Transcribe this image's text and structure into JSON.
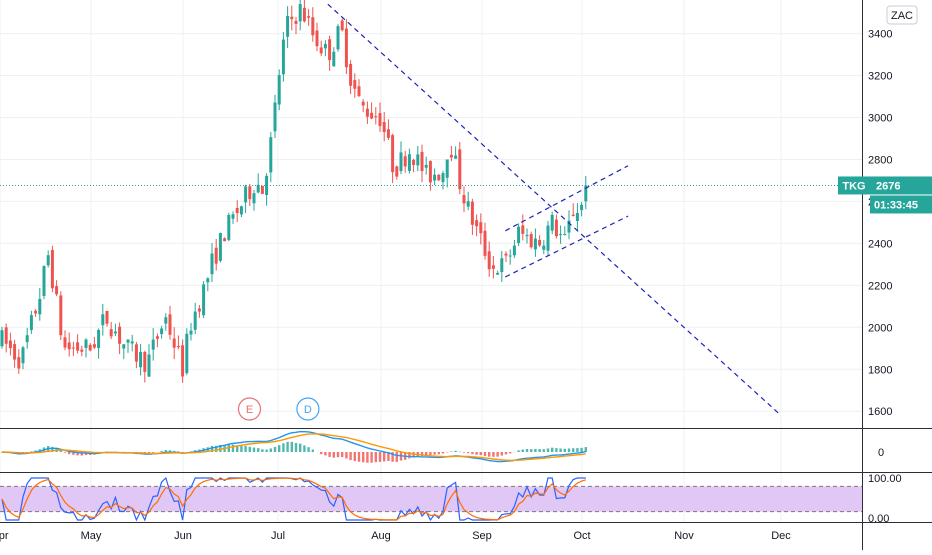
{
  "chart_data": {
    "type": "candlestick",
    "symbol": "TKG",
    "last_price": "2676",
    "countdown": "01:33:45",
    "scale_button": "ZAC",
    "y_axis": {
      "ticks": [
        "3400",
        "3200",
        "3000",
        "2800",
        "2600",
        "2400",
        "2200",
        "2000",
        "1800",
        "1600"
      ],
      "ylim": [
        1520,
        3560
      ]
    },
    "x_axis": {
      "ticks": [
        "Apr",
        "May",
        "Jun",
        "Jul",
        "Aug",
        "Sep",
        "Oct",
        "Nov",
        "Dec"
      ]
    },
    "price_waypoints": [
      [
        "Apr 1",
        1950
      ],
      [
        "Apr 8",
        1840
      ],
      [
        "Apr 14",
        2150
      ],
      [
        "Apr 17",
        2350
      ],
      [
        "Apr 22",
        1900
      ],
      [
        "May 1",
        1900
      ],
      [
        "May 6",
        2050
      ],
      [
        "May 13",
        1900
      ],
      [
        "May 20",
        1830
      ],
      [
        "May 26",
        2050
      ],
      [
        "Jun 1",
        1800
      ],
      [
        "Jun 3",
        2000
      ],
      [
        "Jun 8",
        2200
      ],
      [
        "Jun 10",
        2300
      ],
      [
        "Jun 14",
        2450
      ],
      [
        "Jun 20",
        2600
      ],
      [
        "Jun 24",
        2700
      ],
      [
        "Jun 26",
        2650
      ],
      [
        "Jun 29",
        2900
      ],
      [
        "Jul 2",
        3300
      ],
      [
        "Jul 4",
        3450
      ],
      [
        "Jul 8",
        3520
      ],
      [
        "Jul 12",
        3380
      ],
      [
        "Jul 16",
        3300
      ],
      [
        "Jul 20",
        3420
      ],
      [
        "Jul 23",
        3180
      ],
      [
        "Jul 26",
        3050
      ],
      [
        "Aug 1",
        3000
      ],
      [
        "Aug 5",
        2750
      ],
      [
        "Aug 10",
        2850
      ],
      [
        "Aug 15",
        2720
      ],
      [
        "Aug 20",
        2750
      ],
      [
        "Aug 22",
        2900
      ],
      [
        "Aug 25",
        2700
      ],
      [
        "Aug 28",
        2550
      ],
      [
        "Sep 1",
        2400
      ],
      [
        "Sep 4",
        2280
      ],
      [
        "Sep 8",
        2300
      ],
      [
        "Sep 12",
        2450
      ],
      [
        "Sep 18",
        2400
      ],
      [
        "Sep 22",
        2500
      ],
      [
        "Sep 26",
        2400
      ],
      [
        "Sep 28",
        2550
      ],
      [
        "Oct 1",
        2580
      ],
      [
        "Oct 3",
        2676
      ]
    ],
    "trendlines": [
      {
        "style": "dashed",
        "from": [
          "Jul 16",
          3540
        ],
        "to": [
          "Dec 1",
          1580
        ]
      },
      {
        "style": "dashed",
        "from": [
          "Sep 8",
          2240
        ],
        "to": [
          "Oct 15",
          2530
        ]
      },
      {
        "style": "dashed",
        "from": [
          "Sep 8",
          2460
        ],
        "to": [
          "Oct 15",
          2770
        ]
      }
    ],
    "event_markers": [
      {
        "label": "E",
        "date": "Jun 22"
      },
      {
        "label": "D",
        "date": "Jul 10"
      }
    ],
    "oscillator": {
      "levels": [
        "100.00",
        "0.00"
      ],
      "band": [
        20,
        80
      ]
    },
    "colors": {
      "up": "#26a69a",
      "down": "#ef5350",
      "trendline": "#1f23b5",
      "last_price": "#26a69a",
      "band": "#e1c7f6",
      "osc_line1": "#2962ff",
      "osc_line2": "#ff6d00"
    }
  }
}
